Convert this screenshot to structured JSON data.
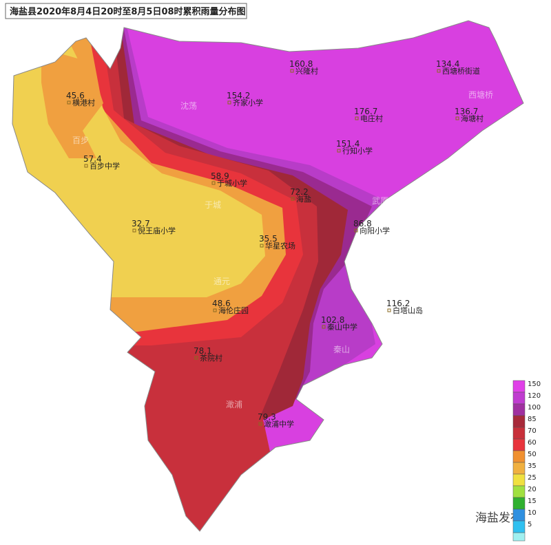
{
  "title": "海盐县2020年8月4日20时至8月5日08时累积雨量分布图",
  "stations": [
    {
      "name": "横港村",
      "value": 45.6
    },
    {
      "name": "百步中学",
      "value": 57.4
    },
    {
      "name": "倪王庙小学",
      "value": 32.7
    },
    {
      "name": "于城小学",
      "value": 58.9
    },
    {
      "name": "海盐",
      "value": 72.2
    },
    {
      "name": "华星农场",
      "value": 35.5
    },
    {
      "name": "海伦庄园",
      "value": 48.6
    },
    {
      "name": "茶院村",
      "value": 78.1
    },
    {
      "name": "澉浦中学",
      "value": 79.3
    },
    {
      "name": "秦山中学",
      "value": 102.8
    },
    {
      "name": "白塔山岛",
      "value": 116.2
    },
    {
      "name": "向阳小学",
      "value": 86.8
    },
    {
      "name": "行知小学",
      "value": 151.4
    },
    {
      "name": "电庄村",
      "value": 176.7
    },
    {
      "name": "齐家小学",
      "value": 154.2
    },
    {
      "name": "兴隆村",
      "value": 160.8
    },
    {
      "name": "西塘桥街道",
      "value": 134.4
    },
    {
      "name": "海塘村",
      "value": 136.7
    }
  ],
  "regions": [
    "百步",
    "于城",
    "通元",
    "澉浦",
    "秦山",
    "沈荡",
    "西塘桥",
    "武原"
  ],
  "legend": [
    {
      "value": 150,
      "color": "#e040e8"
    },
    {
      "value": 120,
      "color": "#c03cd0"
    },
    {
      "value": 100,
      "color": "#a030a0"
    },
    {
      "value": 85,
      "color": "#a82a3a"
    },
    {
      "value": 70,
      "color": "#c8303a"
    },
    {
      "value": 60,
      "color": "#e8343c"
    },
    {
      "value": 50,
      "color": "#f09030"
    },
    {
      "value": 35,
      "color": "#f0b040"
    },
    {
      "value": 25,
      "color": "#f0e040"
    },
    {
      "value": 20,
      "color": "#a0e040"
    },
    {
      "value": 15,
      "color": "#30b030"
    },
    {
      "value": 10,
      "color": "#3090e0"
    },
    {
      "value": 5,
      "color": "#30c0f0"
    }
  ],
  "watermark": "海盐发布"
}
